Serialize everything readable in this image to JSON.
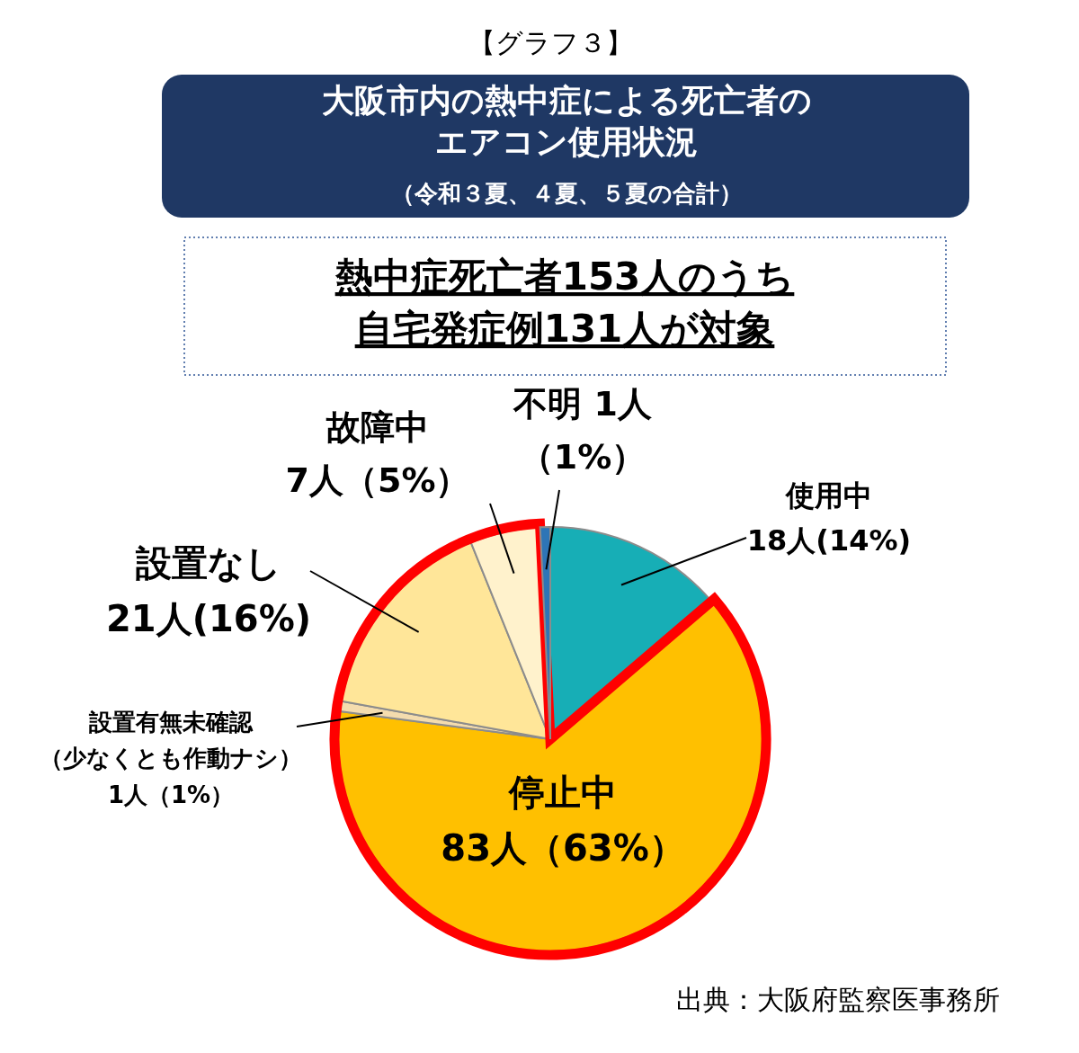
{
  "chart_data": {
    "type": "pie",
    "title": "大阪市内の熱中症による死亡者のエアコン使用状況",
    "subtitle": "（令和３夏、４夏、５夏の合計）",
    "categories": [
      "使用中",
      "停止中",
      "設置有無未確認（少なくとも作動ナシ）",
      "設置なし",
      "故障中",
      "不明"
    ],
    "values": [
      18,
      83,
      1,
      21,
      7,
      1
    ],
    "colors": [
      "#17aeb6",
      "#ffc000",
      "#f4dcae",
      "#ffe699",
      "#fff2cc",
      "#2e75b6"
    ],
    "value_labels": [
      "18人(14%)",
      "83人（63%）",
      "1人（1%）",
      "21人(16%)",
      "7人（5%）",
      "1人（1%）"
    ],
    "annotations": [
      "【グラフ３】",
      "熱中症死亡者153人のうち自宅発症例131人が対象",
      "出典：大阪府監察医事務所"
    ]
  }
}
